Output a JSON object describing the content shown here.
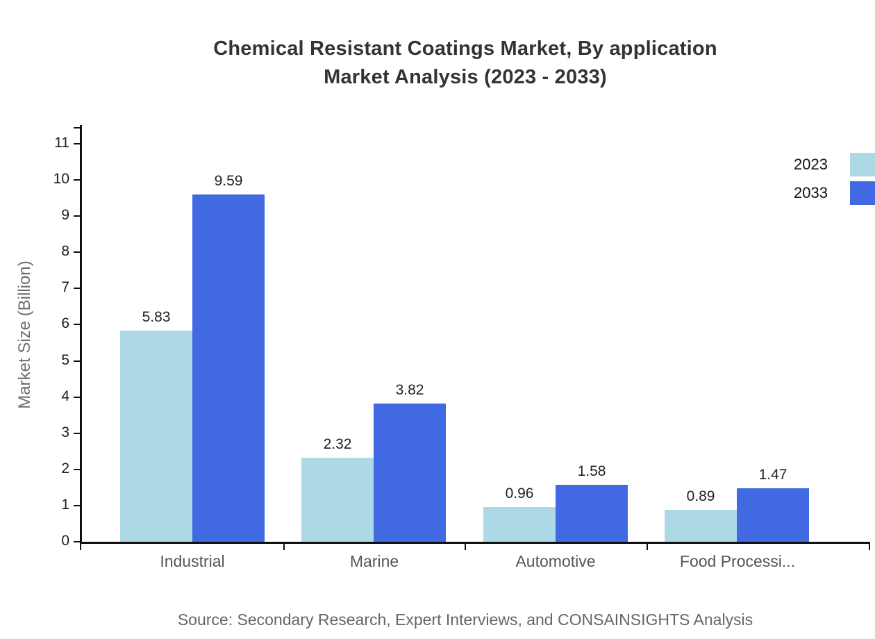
{
  "title": {
    "line1": "Chemical Resistant Coatings Market, By application",
    "line2": "Market Analysis (2023 - 2033)"
  },
  "source_note": "Source: Secondary Research, Expert Interviews, and CONSAINSIGHTS Analysis",
  "chart_data": {
    "type": "bar",
    "title": "Chemical Resistant Coatings Market, By application Market Analysis (2023 - 2033)",
    "categories": [
      "Industrial",
      "Marine",
      "Automotive",
      "Food Processi..."
    ],
    "series": [
      {
        "name": "2023",
        "color": "#ADD8E6",
        "values": [
          5.83,
          2.32,
          0.96,
          0.89
        ]
      },
      {
        "name": "2033",
        "color": "#4169E1",
        "values": [
          9.59,
          3.82,
          1.58,
          1.47
        ]
      }
    ],
    "xlabel": "",
    "ylabel": "Market Size (Billion)",
    "ylim": [
      0,
      11.5
    ],
    "yticks": [
      0,
      1,
      2,
      3,
      4,
      5,
      6,
      7,
      8,
      9,
      10,
      11
    ],
    "grid": false,
    "legend_position": "top-right",
    "value_labels": true,
    "colors": {
      "axis": "#111111",
      "tick_label": "#1c1c1c",
      "category_label": "#565656",
      "value_label": "#222222",
      "title": "#333333",
      "ylabel": "#6e6e6e",
      "source": "#666666"
    }
  }
}
